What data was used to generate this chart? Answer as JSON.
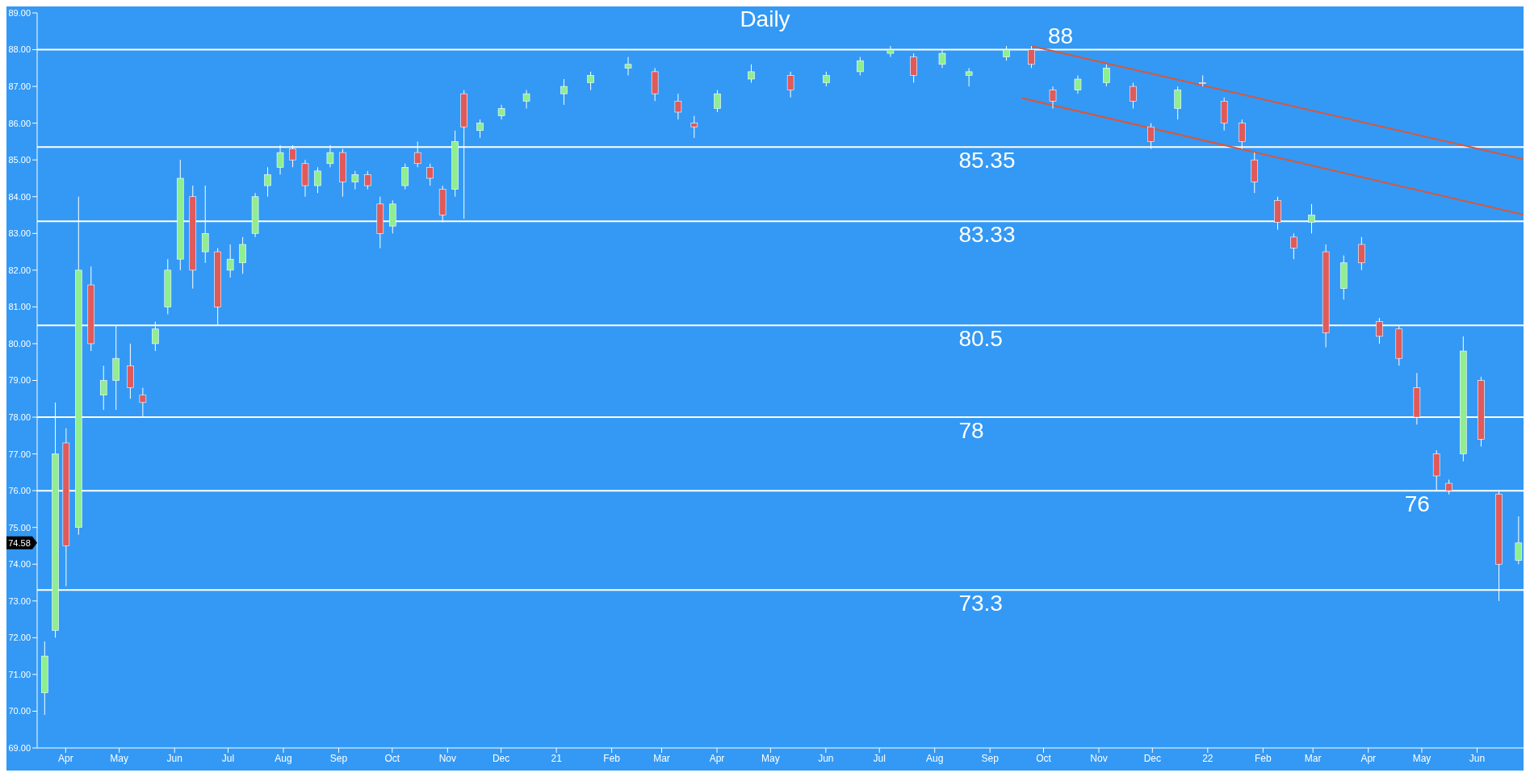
{
  "chart_data": {
    "type": "candlestick",
    "title": "Daily",
    "x": [
      "2020-03-20",
      "2020-03-26",
      "2020-04-01",
      "2020-04-08",
      "2020-04-15",
      "2020-04-22",
      "2020-04-29",
      "2020-05-07",
      "2020-05-14",
      "2020-05-21",
      "2020-05-28",
      "2020-06-04",
      "2020-06-11",
      "2020-06-18",
      "2020-06-25",
      "2020-07-02",
      "2020-07-09",
      "2020-07-16",
      "2020-07-23",
      "2020-07-30",
      "2020-08-06",
      "2020-08-13",
      "2020-08-20",
      "2020-08-27",
      "2020-09-03",
      "2020-09-10",
      "2020-09-17",
      "2020-09-24",
      "2020-10-01",
      "2020-10-08",
      "2020-10-15",
      "2020-10-22",
      "2020-10-29",
      "2020-11-05",
      "2020-11-10",
      "2020-11-19",
      "2020-12-01",
      "2020-12-15",
      "2021-01-05",
      "2021-01-20",
      "2021-02-10",
      "2021-02-25",
      "2021-03-10",
      "2021-03-19",
      "2021-04-01",
      "2021-04-20",
      "2021-05-12",
      "2021-06-01",
      "2021-06-20",
      "2021-07-07",
      "2021-07-20",
      "2021-08-05",
      "2021-08-20",
      "2021-09-10",
      "2021-09-24",
      "2021-10-06",
      "2021-10-20",
      "2021-11-05",
      "2021-11-20",
      "2021-11-30",
      "2021-12-15",
      "2021-12-29",
      "2022-01-10",
      "2022-01-20",
      "2022-01-27",
      "2022-02-09",
      "2022-02-18",
      "2022-02-28",
      "2022-03-08",
      "2022-03-18",
      "2022-03-28",
      "2022-04-07",
      "2022-04-18",
      "2022-04-28",
      "2022-05-09",
      "2022-05-16",
      "2022-05-24",
      "2022-06-03",
      "2022-06-13",
      "2022-06-24"
    ],
    "ohlc": [
      [
        70.5,
        71.9,
        69.9,
        71.5
      ],
      [
        72.2,
        78.4,
        72.0,
        77.0
      ],
      [
        77.3,
        77.7,
        73.4,
        74.5
      ],
      [
        75.0,
        84.0,
        74.8,
        82.0
      ],
      [
        81.6,
        82.1,
        79.8,
        80.0
      ],
      [
        78.6,
        79.4,
        78.2,
        79.0
      ],
      [
        79.0,
        80.5,
        78.2,
        79.6
      ],
      [
        79.4,
        80.0,
        78.5,
        78.8
      ],
      [
        78.6,
        78.8,
        78.0,
        78.4
      ],
      [
        80.0,
        80.6,
        79.8,
        80.4
      ],
      [
        81.0,
        82.3,
        80.8,
        82.0
      ],
      [
        82.3,
        85.0,
        82.0,
        84.5
      ],
      [
        84.0,
        84.3,
        81.5,
        82.0
      ],
      [
        82.5,
        84.3,
        82.2,
        83.0
      ],
      [
        82.5,
        82.6,
        80.5,
        81.0
      ],
      [
        82.0,
        82.7,
        81.8,
        82.3
      ],
      [
        82.2,
        82.9,
        81.9,
        82.7
      ],
      [
        83.0,
        84.1,
        82.9,
        84.0
      ],
      [
        84.3,
        84.8,
        84.0,
        84.6
      ],
      [
        84.8,
        85.4,
        84.6,
        85.2
      ],
      [
        85.3,
        85.4,
        84.8,
        85.0
      ],
      [
        84.9,
        85.0,
        84.0,
        84.3
      ],
      [
        84.3,
        84.8,
        84.1,
        84.7
      ],
      [
        84.9,
        85.4,
        84.8,
        85.2
      ],
      [
        85.2,
        85.3,
        84.0,
        84.4
      ],
      [
        84.4,
        84.7,
        84.2,
        84.6
      ],
      [
        84.6,
        84.7,
        84.2,
        84.3
      ],
      [
        83.8,
        84.0,
        82.6,
        83.0
      ],
      [
        83.2,
        83.9,
        83.0,
        83.8
      ],
      [
        84.3,
        84.9,
        84.2,
        84.8
      ],
      [
        85.2,
        85.5,
        84.8,
        84.9
      ],
      [
        84.8,
        84.9,
        84.3,
        84.5
      ],
      [
        84.2,
        84.3,
        83.3,
        83.5
      ],
      [
        84.2,
        85.8,
        84.0,
        85.5
      ],
      [
        86.8,
        86.9,
        83.4,
        85.9
      ],
      [
        85.8,
        86.1,
        85.6,
        86.0
      ],
      [
        86.2,
        86.5,
        86.1,
        86.4
      ],
      [
        86.6,
        86.9,
        86.4,
        86.8
      ],
      [
        86.8,
        87.2,
        86.5,
        87.0
      ],
      [
        87.1,
        87.4,
        86.9,
        87.3
      ],
      [
        87.5,
        87.8,
        87.3,
        87.6
      ],
      [
        87.4,
        87.5,
        86.6,
        86.8
      ],
      [
        86.6,
        86.8,
        86.1,
        86.3
      ],
      [
        86.0,
        86.2,
        85.6,
        85.9
      ],
      [
        86.4,
        86.9,
        86.3,
        86.8
      ],
      [
        87.2,
        87.6,
        87.1,
        87.4
      ],
      [
        87.3,
        87.4,
        86.7,
        86.9
      ],
      [
        87.1,
        87.4,
        87.0,
        87.3
      ],
      [
        87.4,
        87.8,
        87.3,
        87.7
      ],
      [
        87.9,
        88.1,
        87.8,
        88.0
      ],
      [
        87.8,
        87.9,
        87.1,
        87.3
      ],
      [
        87.6,
        88.0,
        87.5,
        87.9
      ],
      [
        87.3,
        87.5,
        87.0,
        87.4
      ],
      [
        87.8,
        88.1,
        87.7,
        88.0
      ],
      [
        88.0,
        88.1,
        87.5,
        87.6
      ],
      [
        86.9,
        87.0,
        86.4,
        86.6
      ],
      [
        86.9,
        87.3,
        86.8,
        87.2
      ],
      [
        87.1,
        87.6,
        87.0,
        87.5
      ],
      [
        87.0,
        87.1,
        86.4,
        86.6
      ],
      [
        85.9,
        86.0,
        85.3,
        85.5
      ],
      [
        86.4,
        87.0,
        86.1,
        86.9
      ],
      [
        87.1,
        87.3,
        87.0,
        87.1
      ],
      [
        86.6,
        86.7,
        85.8,
        86.0
      ],
      [
        86.0,
        86.1,
        85.3,
        85.5
      ],
      [
        85.0,
        85.2,
        84.1,
        84.4
      ],
      [
        83.9,
        84.0,
        83.1,
        83.3
      ],
      [
        82.9,
        83.0,
        82.3,
        82.6
      ],
      [
        83.3,
        83.8,
        83.0,
        83.5
      ],
      [
        82.5,
        82.7,
        79.9,
        80.3
      ],
      [
        81.5,
        82.4,
        81.2,
        82.2
      ],
      [
        82.7,
        82.9,
        82.0,
        82.2
      ],
      [
        80.6,
        80.7,
        80.0,
        80.2
      ],
      [
        80.4,
        80.5,
        79.4,
        79.6
      ],
      [
        78.8,
        79.2,
        77.8,
        78.0
      ],
      [
        77.0,
        77.1,
        76.0,
        76.4
      ],
      [
        76.2,
        76.3,
        75.9,
        76.0
      ],
      [
        77.0,
        80.2,
        76.8,
        79.8
      ],
      [
        79.0,
        79.1,
        77.2,
        77.4
      ],
      [
        75.9,
        76.0,
        73.0,
        74.0
      ],
      [
        74.1,
        75.3,
        74.0,
        74.58
      ]
    ],
    "series": [
      {
        "type": "line",
        "color": "#d9573a",
        "x": [
          "2021-09-24",
          "2022-06-27"
        ],
        "values": [
          88.1,
          85.02
        ]
      },
      {
        "type": "line",
        "color": "#d9573a",
        "x": [
          "2021-09-19",
          "2022-06-27"
        ],
        "values": [
          86.68,
          83.51
        ]
      }
    ],
    "ref_lines": [
      {
        "axis": "y",
        "value": 88,
        "label": "88",
        "color": "#ffffff"
      },
      {
        "axis": "y",
        "value": 85.35,
        "label": "85.35",
        "color": "#ffffff"
      },
      {
        "axis": "y",
        "value": 83.33,
        "label": "83.33",
        "color": "#ffffff"
      },
      {
        "axis": "y",
        "value": 80.5,
        "label": "80.5",
        "color": "#ffffff"
      },
      {
        "axis": "y",
        "value": 78,
        "label": "78",
        "color": "#ffffff"
      },
      {
        "axis": "y",
        "value": 76,
        "label": "76",
        "color": "#ffffff"
      },
      {
        "axis": "y",
        "value": 73.3,
        "label": "73.3",
        "color": "#ffffff"
      }
    ],
    "annotations": [
      "74.58"
    ],
    "xlim": [
      "2020-03-16",
      "2022-06-27"
    ],
    "xticks": [
      {
        "value": "2020-04-01",
        "label": "Apr"
      },
      {
        "value": "2020-05-01",
        "label": "May"
      },
      {
        "value": "2020-06-01",
        "label": "Jun"
      },
      {
        "value": "2020-07-01",
        "label": "Jul"
      },
      {
        "value": "2020-08-01",
        "label": "Aug"
      },
      {
        "value": "2020-09-01",
        "label": "Sep"
      },
      {
        "value": "2020-10-01",
        "label": "Oct"
      },
      {
        "value": "2020-11-01",
        "label": "Nov"
      },
      {
        "value": "2020-12-01",
        "label": "Dec"
      },
      {
        "value": "2021-01-01",
        "label": "21"
      },
      {
        "value": "2021-02-01",
        "label": "Feb"
      },
      {
        "value": "2021-03-01",
        "label": "Mar"
      },
      {
        "value": "2021-04-01",
        "label": "Apr"
      },
      {
        "value": "2021-05-01",
        "label": "May"
      },
      {
        "value": "2021-06-01",
        "label": "Jun"
      },
      {
        "value": "2021-07-01",
        "label": "Jul"
      },
      {
        "value": "2021-08-01",
        "label": "Aug"
      },
      {
        "value": "2021-09-01",
        "label": "Sep"
      },
      {
        "value": "2021-10-01",
        "label": "Oct"
      },
      {
        "value": "2021-11-01",
        "label": "Nov"
      },
      {
        "value": "2021-12-01",
        "label": "Dec"
      },
      {
        "value": "2022-01-01",
        "label": "22"
      },
      {
        "value": "2022-02-01",
        "label": "Feb"
      },
      {
        "value": "2022-03-01",
        "label": "Mar"
      },
      {
        "value": "2022-04-01",
        "label": "Apr"
      },
      {
        "value": "2022-05-01",
        "label": "May"
      },
      {
        "value": "2022-06-01",
        "label": "Jun"
      }
    ],
    "ylim": [
      69,
      89
    ],
    "yticks": [
      {
        "value": 69,
        "label": "69.00"
      },
      {
        "value": 70,
        "label": "70.00"
      },
      {
        "value": 71,
        "label": "71.00"
      },
      {
        "value": 72,
        "label": "72.00"
      },
      {
        "value": 73,
        "label": "73.00"
      },
      {
        "value": 74,
        "label": "74.00"
      },
      {
        "value": 75,
        "label": "75.00"
      },
      {
        "value": 76,
        "label": "76.00"
      },
      {
        "value": 77,
        "label": "77.00"
      },
      {
        "value": 78,
        "label": "78.00"
      },
      {
        "value": 79,
        "label": "79.00"
      },
      {
        "value": 80,
        "label": "80.00"
      },
      {
        "value": 81,
        "label": "81.00"
      },
      {
        "value": 82,
        "label": "82.00"
      },
      {
        "value": 83,
        "label": "83.00"
      },
      {
        "value": 84,
        "label": "84.00"
      },
      {
        "value": 85,
        "label": "85.00"
      },
      {
        "value": 86,
        "label": "86.00"
      },
      {
        "value": 87,
        "label": "87.00"
      },
      {
        "value": 88,
        "label": "88.00"
      },
      {
        "value": 89,
        "label": "89.00"
      }
    ],
    "colors": [
      "#90ee90",
      "#90ee90",
      "#e05a5a",
      "#90ee90",
      "#e05a5a",
      "#90ee90",
      "#90ee90",
      "#e05a5a",
      "#e05a5a",
      "#90ee90",
      "#90ee90",
      "#90ee90",
      "#e05a5a",
      "#90ee90",
      "#e05a5a",
      "#90ee90",
      "#90ee90",
      "#90ee90",
      "#90ee90",
      "#90ee90",
      "#e05a5a",
      "#e05a5a",
      "#90ee90",
      "#90ee90",
      "#e05a5a",
      "#90ee90",
      "#e05a5a",
      "#e05a5a",
      "#90ee90",
      "#90ee90",
      "#e05a5a",
      "#e05a5a",
      "#e05a5a",
      "#90ee90",
      "#e05a5a",
      "#90ee90",
      "#90ee90",
      "#90ee90",
      "#90ee90",
      "#90ee90",
      "#90ee90",
      "#e05a5a",
      "#e05a5a",
      "#e05a5a",
      "#90ee90",
      "#90ee90",
      "#e05a5a",
      "#90ee90",
      "#90ee90",
      "#90ee90",
      "#e05a5a",
      "#90ee90",
      "#90ee90",
      "#90ee90",
      "#e05a5a",
      "#e05a5a",
      "#90ee90",
      "#90ee90",
      "#e05a5a",
      "#e05a5a",
      "#90ee90",
      "#e05a5a",
      "#e05a5a",
      "#e05a5a",
      "#e05a5a",
      "#e05a5a",
      "#e05a5a",
      "#90ee90",
      "#e05a5a",
      "#90ee90",
      "#e05a5a",
      "#e05a5a",
      "#e05a5a",
      "#e05a5a",
      "#e05a5a",
      "#e05a5a",
      "#90ee90",
      "#e05a5a",
      "#e05a5a",
      "#90ee90"
    ]
  }
}
